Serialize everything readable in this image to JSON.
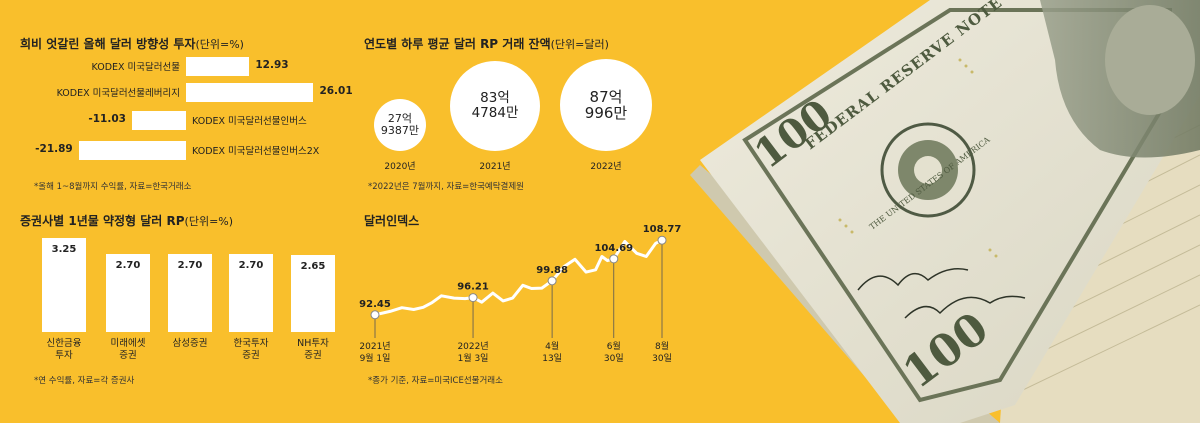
{
  "chart_data": [
    {
      "type": "bar",
      "orientation": "horizontal",
      "title": "희비 엇갈린 올해 달러 방향성 투자",
      "unit": "(단위=%)",
      "categories": [
        "KODEX 미국달러선물",
        "KODEX 미국달러선물레버리지",
        "KODEX 미국달러선물인버스",
        "KODEX 미국달러선물인버스2X"
      ],
      "values": [
        12.93,
        26.01,
        -11.03,
        -21.89
      ],
      "labels": [
        "12.93",
        "26.01",
        "-11.03",
        "-21.89"
      ],
      "note": "*올해 1~8월까지 수익률, 자료=한국거래소"
    },
    {
      "type": "bubble",
      "title": "연도별 하루 평균 달러 RP 거래 잔액",
      "unit": "(단위=달러)",
      "categories": [
        "2020년",
        "2021년",
        "2022년"
      ],
      "values": [
        2793870000,
        8347840000,
        8709960000
      ],
      "labels": [
        [
          "27억",
          "9387만"
        ],
        [
          "83억",
          "4784만"
        ],
        [
          "87억",
          "996만"
        ]
      ],
      "note": "*2022년은 7월까지, 자료=한국예탁결제원"
    },
    {
      "type": "bar",
      "title": "증권사별 1년물 약정형 달러 RP",
      "unit": "(단위=%)",
      "categories": [
        [
          "신한금융",
          "투자"
        ],
        [
          "미래에셋",
          "증권"
        ],
        [
          "삼성증권"
        ],
        [
          "한국투자",
          "증권"
        ],
        [
          "NH투자",
          "증권"
        ]
      ],
      "values": [
        3.25,
        2.7,
        2.7,
        2.7,
        2.65
      ],
      "labels": [
        "3.25",
        "2.70",
        "2.70",
        "2.70",
        "2.65"
      ],
      "note": "*연 수익률, 자료=각 증권사"
    },
    {
      "type": "line",
      "title": "달러인덱스",
      "note": "*종가 기준, 자료=미국ICE선물거래소",
      "highlighted_points": [
        {
          "date": "2021-09-01",
          "value": 92.45,
          "label": "92.45",
          "date_label": [
            "2021년",
            "9월 1일"
          ]
        },
        {
          "date": "2022-01-03",
          "value": 96.21,
          "label": "96.21",
          "date_label": [
            "2022년",
            "1월 3일"
          ]
        },
        {
          "date": "2022-04-13",
          "value": 99.88,
          "label": "99.88",
          "date_label": [
            "4월",
            "13일"
          ]
        },
        {
          "date": "2022-06-30",
          "value": 104.69,
          "label": "104.69",
          "date_label": [
            "6월",
            "30일"
          ]
        },
        {
          "date": "2022-08-30",
          "value": 108.77,
          "label": "108.77",
          "date_label": [
            "8월",
            "30일"
          ]
        }
      ],
      "series": [
        {
          "x": [
            "2021-09-01",
            "2021-09-20",
            "2021-10-05",
            "2021-10-20",
            "2021-11-01",
            "2021-11-12",
            "2021-11-24",
            "2021-12-10",
            "2021-12-24",
            "2022-01-03",
            "2022-01-14",
            "2022-01-28",
            "2022-02-10",
            "2022-02-22",
            "2022-03-07",
            "2022-03-18",
            "2022-03-31",
            "2022-04-13",
            "2022-04-28",
            "2022-05-12",
            "2022-05-26",
            "2022-06-07",
            "2022-06-15",
            "2022-06-22",
            "2022-06-30",
            "2022-07-14",
            "2022-07-29",
            "2022-08-10",
            "2022-08-22",
            "2022-08-30"
          ],
          "y": [
            92.45,
            93.2,
            94.0,
            93.6,
            94.1,
            95.1,
            96.6,
            96.1,
            96.0,
            96.21,
            95.2,
            97.2,
            95.5,
            96.1,
            98.9,
            98.2,
            98.3,
            99.88,
            103.0,
            104.6,
            101.8,
            102.3,
            105.2,
            104.3,
            104.69,
            108.5,
            105.9,
            105.2,
            108.1,
            108.77
          ]
        }
      ],
      "ylim": [
        90,
        111
      ]
    }
  ],
  "photo": {
    "banknote_texts": [
      "FEDERAL RESERVE NOTE",
      "100",
      "THE UNITED STATES OF AMERICA"
    ],
    "colors": {
      "background": "#F9BF2C",
      "note_green": "#5D6B4B",
      "note_paper": "#E9E6D5"
    }
  }
}
